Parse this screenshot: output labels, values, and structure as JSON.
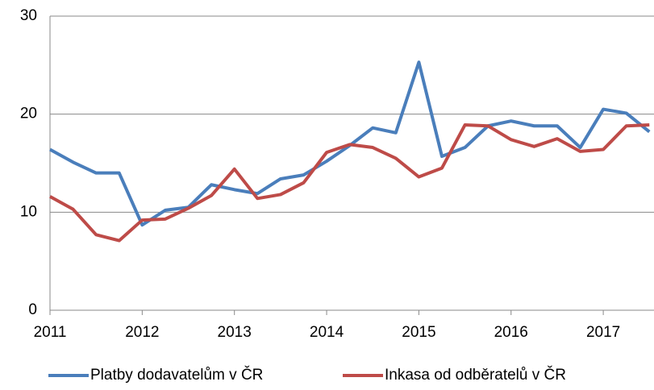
{
  "chart_data": {
    "type": "line",
    "x": [
      2011,
      2011.25,
      2011.5,
      2011.75,
      2012,
      2012.25,
      2012.5,
      2012.75,
      2013,
      2013.25,
      2013.5,
      2013.75,
      2014,
      2014.25,
      2014.5,
      2014.75,
      2015,
      2015.25,
      2015.5,
      2015.75,
      2016,
      2016.25,
      2016.5,
      2016.75,
      2017,
      2017.25,
      2017.5
    ],
    "series": [
      {
        "name": "Platby dodavatelům v ČR",
        "color": "#4a7ebb",
        "values": [
          16.4,
          15.1,
          14.0,
          14.0,
          8.7,
          10.2,
          10.5,
          12.8,
          12.3,
          11.9,
          13.4,
          13.8,
          15.2,
          16.8,
          18.6,
          18.1,
          25.3,
          15.7,
          16.6,
          18.8,
          19.3,
          18.8,
          18.8,
          16.6,
          20.5,
          20.1,
          18.2
        ]
      },
      {
        "name": "Inkasa od odběratelů v ČR",
        "color": "#be4b48",
        "values": [
          11.6,
          10.3,
          7.7,
          7.1,
          9.2,
          9.3,
          10.4,
          11.7,
          14.4,
          11.4,
          11.8,
          13.0,
          16.1,
          16.9,
          16.6,
          15.5,
          13.6,
          14.5,
          18.9,
          18.8,
          17.4,
          16.7,
          17.5,
          16.2,
          16.4,
          18.8,
          18.9
        ]
      }
    ],
    "xlim": [
      2011,
      2017.55
    ],
    "xticks": [
      2011,
      2012,
      2013,
      2014,
      2015,
      2016,
      2017
    ],
    "ylim": [
      0,
      30
    ],
    "yticks": [
      0,
      10,
      20,
      30
    ],
    "grid": true,
    "legend": "bottom"
  }
}
